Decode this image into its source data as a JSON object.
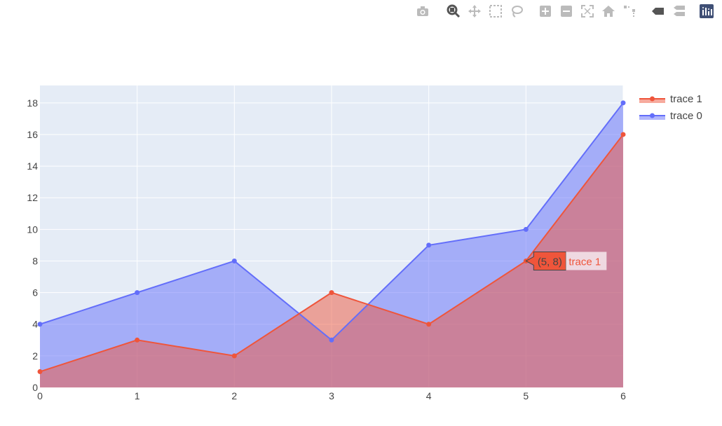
{
  "modebar": {
    "buttons": [
      {
        "name": "camera-icon",
        "color": "#bbbbbb"
      },
      {
        "name": "zoom-icon",
        "color": "#555555"
      },
      {
        "name": "pan-icon",
        "color": "#bbbbbb"
      },
      {
        "name": "box-select-icon",
        "color": "#bbbbbb"
      },
      {
        "name": "lasso-select-icon",
        "color": "#bbbbbb"
      },
      {
        "name": "zoom-in-icon",
        "color": "#bbbbbb"
      },
      {
        "name": "zoom-out-icon",
        "color": "#bbbbbb"
      },
      {
        "name": "autoscale-icon",
        "color": "#bbbbbb"
      },
      {
        "name": "reset-axes-icon",
        "color": "#bbbbbb"
      },
      {
        "name": "spike-lines-icon",
        "color": "#bbbbbb"
      },
      {
        "name": "hover-closest-icon",
        "color": "#555555"
      },
      {
        "name": "hover-compare-icon",
        "color": "#bbbbbb"
      },
      {
        "name": "plotly-logo-icon",
        "color": "#3f4f75"
      }
    ]
  },
  "chart_data": {
    "type": "area",
    "title": "",
    "xlabel": "",
    "ylabel": "",
    "xlim": [
      0,
      6
    ],
    "ylim": [
      0,
      19.1
    ],
    "x_ticks": [
      0,
      1,
      2,
      3,
      4,
      5,
      6
    ],
    "y_ticks": [
      0,
      2,
      4,
      6,
      8,
      10,
      12,
      14,
      16,
      18
    ],
    "grid": true,
    "legend_placement": "top-right",
    "x": [
      0,
      1,
      2,
      3,
      4,
      5,
      6
    ],
    "series": [
      {
        "name": "trace 0",
        "values": [
          4,
          6,
          8,
          3,
          9,
          10,
          18
        ],
        "color": "#636efa",
        "fill": "tozeroy"
      },
      {
        "name": "trace 1",
        "values": [
          1,
          3,
          2,
          6,
          4,
          8,
          16
        ],
        "color": "#ef553b",
        "fill": "tozeroy"
      }
    ],
    "legend_order": [
      "trace 1",
      "trace 0"
    ],
    "hover": {
      "series": "trace 1",
      "label": "(5, 8)",
      "x": 5,
      "y": 8
    },
    "colors": {
      "plot_bg": "#e5ecf6",
      "grid": "#ffffff",
      "tick_text": "#444444"
    }
  }
}
